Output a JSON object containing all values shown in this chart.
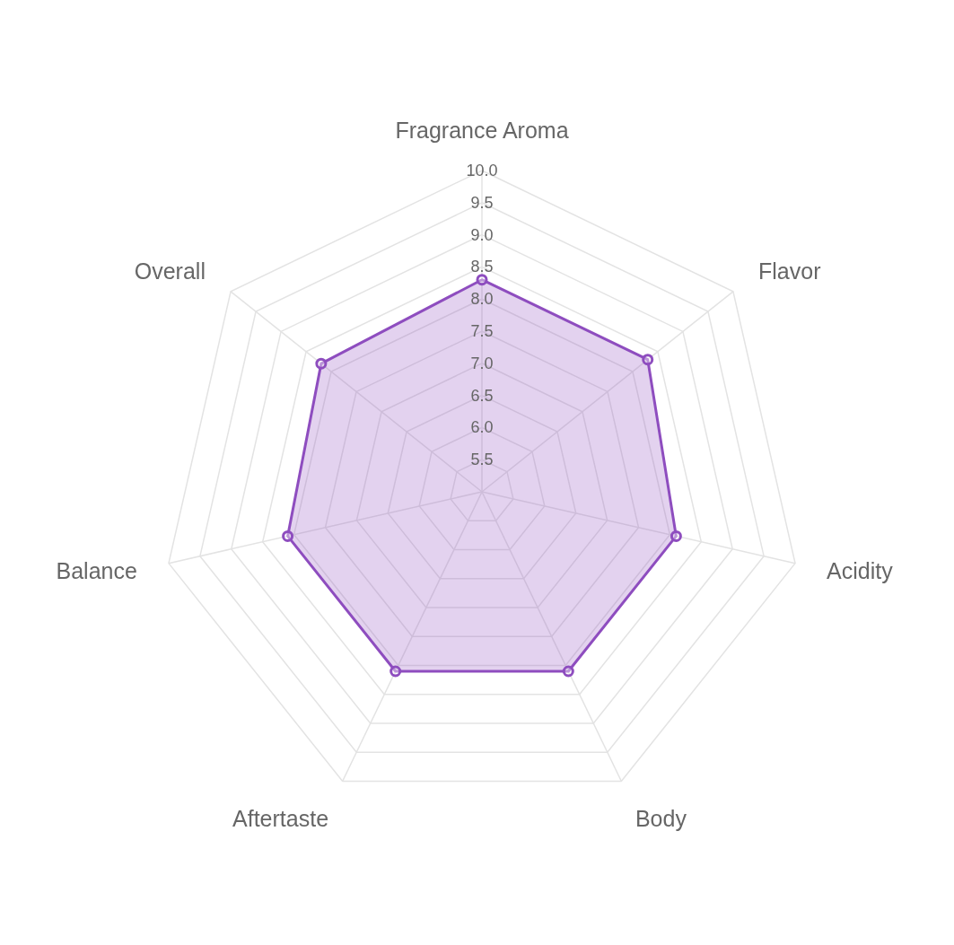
{
  "chart_data": {
    "type": "radar",
    "categories": [
      "Fragrance Aroma",
      "Flavor",
      "Acidity",
      "Body",
      "Aftertaste",
      "Balance",
      "Overall"
    ],
    "series": [
      {
        "color": "#8e4dbf",
        "values": [
          8.3,
          8.3,
          8.1,
          8.1,
          8.1,
          8.1,
          8.2
        ]
      }
    ],
    "ylim": [
      5,
      10
    ],
    "yticks": [
      {
        "value": 5.5,
        "label": "5.5"
      },
      {
        "value": 6,
        "label": "6.0"
      },
      {
        "value": 6.5,
        "label": "6.5"
      },
      {
        "value": 7,
        "label": "7.0"
      },
      {
        "value": 7.5,
        "label": "7.5"
      },
      {
        "value": 8,
        "label": "8.0"
      },
      {
        "value": 8.5,
        "label": "8.5"
      },
      {
        "value": 9,
        "label": "9.0"
      },
      {
        "value": 9.5,
        "label": "9.5"
      },
      {
        "value": 10,
        "label": "10.0"
      }
    ],
    "grid": true,
    "marker": "circle",
    "legend": false
  }
}
